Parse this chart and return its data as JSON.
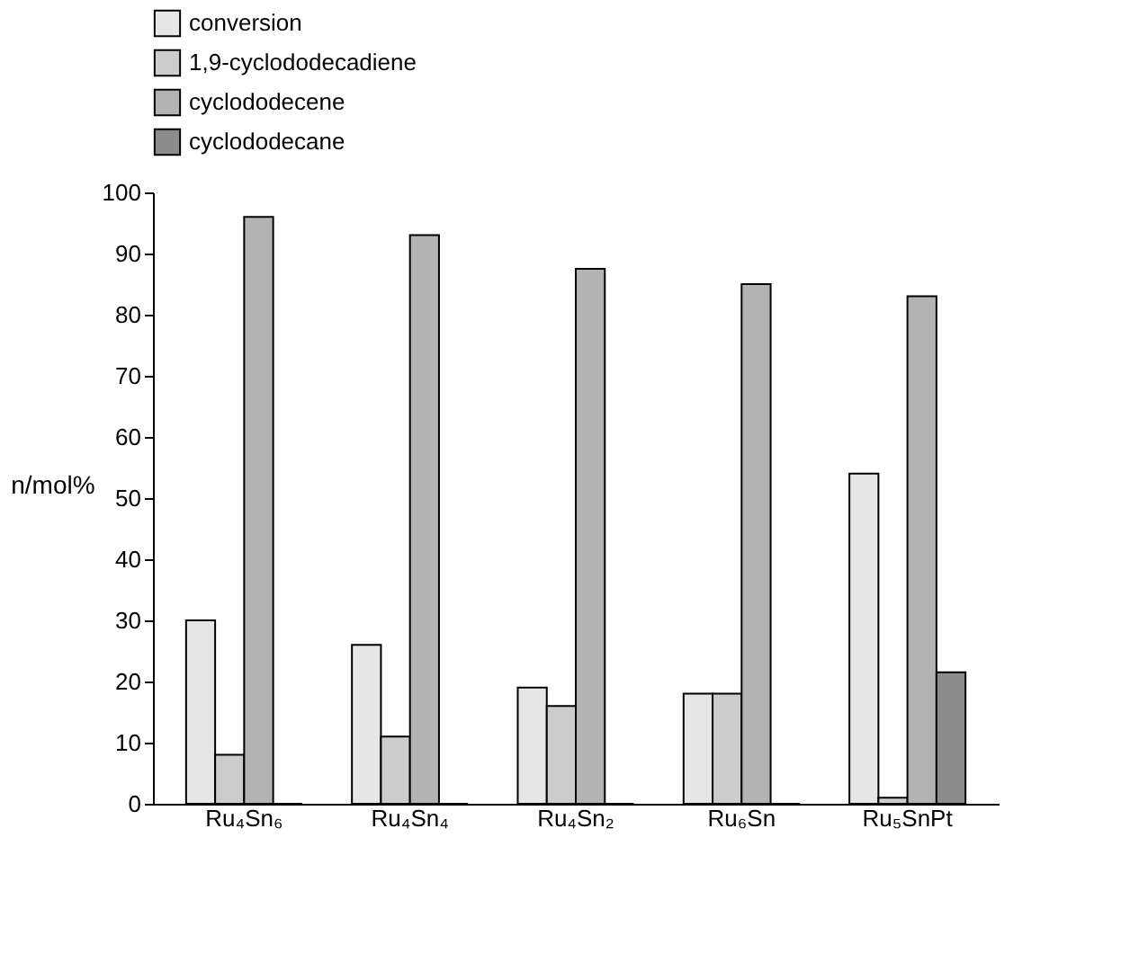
{
  "chart_data": {
    "type": "bar",
    "ylabel": "n/mol%",
    "categories": [
      "Ru₄Sn₆",
      "Ru₄Sn₄",
      "Ru₄Sn₂",
      "Ru₆Sn",
      "Ru₅SnPt"
    ],
    "series": [
      {
        "name": "conversion",
        "color": "#e6e6e6",
        "values": [
          30,
          26,
          19,
          18,
          54
        ]
      },
      {
        "name": "1,9-cyclododecadiene",
        "color": "#cccccc",
        "values": [
          8,
          11,
          16,
          18,
          1
        ]
      },
      {
        "name": "cyclododecene",
        "color": "#b3b3b3",
        "values": [
          96,
          93,
          87.5,
          85,
          83
        ]
      },
      {
        "name": "cyclododecane",
        "color": "#8c8c8c",
        "values": [
          0,
          0,
          0,
          0,
          21.5
        ]
      }
    ],
    "ylim": [
      0,
      100
    ],
    "yticks": [
      0,
      10,
      20,
      30,
      40,
      50,
      60,
      70,
      80,
      90,
      100
    ],
    "grid": false,
    "legend": "top"
  }
}
